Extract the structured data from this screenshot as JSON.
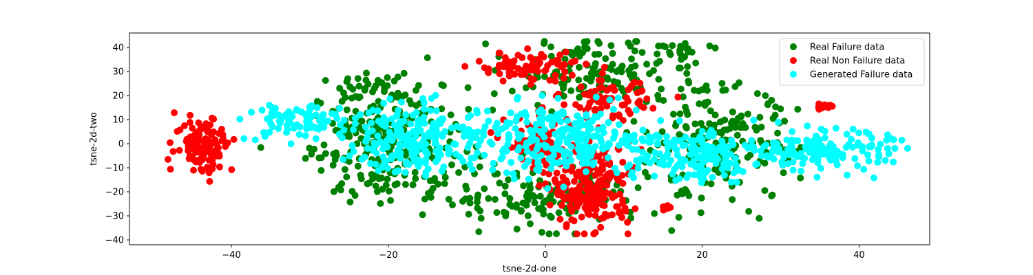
{
  "chart_data": {
    "type": "scatter",
    "title": "",
    "xlabel": "tsne-2d-one",
    "ylabel": "tsne-2d-two",
    "xlim": [
      -53,
      49
    ],
    "ylim": [
      -42,
      46
    ],
    "xticks": [
      -40,
      -20,
      0,
      20,
      40
    ],
    "yticks": [
      -40,
      -30,
      -20,
      -10,
      0,
      10,
      20,
      30,
      40
    ],
    "grid": false,
    "legend_position": "top-right",
    "series": [
      {
        "name": "Real Failure data",
        "color": "#008000",
        "clusters": [
          {
            "cx": -20,
            "cy": 0,
            "sx": 5,
            "sy": 12,
            "n": 260
          },
          {
            "cx": 6,
            "cy": 30,
            "sx": 5,
            "sy": 7,
            "n": 130
          },
          {
            "cx": 0,
            "cy": -22,
            "sx": 7,
            "sy": 6,
            "n": 150
          },
          {
            "cx": 22,
            "cy": 0,
            "sx": 5,
            "sy": 12,
            "n": 200
          },
          {
            "cx": 18,
            "cy": 39,
            "sx": 2,
            "sy": 1.2,
            "n": 20
          },
          {
            "cx": -22,
            "cy": 24,
            "sx": 2.5,
            "sy": 3,
            "n": 30
          }
        ]
      },
      {
        "name": "Real Non Failure data",
        "color": "#ff0000",
        "clusters": [
          {
            "cx": -43.5,
            "cy": 0,
            "sx": 1.8,
            "sy": 6,
            "n": 110
          },
          {
            "cx": 6,
            "cy": -18,
            "sx": 2.5,
            "sy": 9,
            "n": 220
          },
          {
            "cx": -2,
            "cy": 32,
            "sx": 3.5,
            "sy": 3,
            "n": 80
          },
          {
            "cx": 8,
            "cy": 18,
            "sx": 2.5,
            "sy": 4,
            "n": 70
          },
          {
            "cx": -1,
            "cy": 0,
            "sx": 2,
            "sy": 6,
            "n": 60
          },
          {
            "cx": 35.5,
            "cy": 15.5,
            "sx": 0.7,
            "sy": 0.6,
            "n": 20
          },
          {
            "cx": 15.5,
            "cy": -26.5,
            "sx": 0.4,
            "sy": 0.8,
            "n": 6
          },
          {
            "cx": -48,
            "cy": 0.3,
            "sx": 0.2,
            "sy": 0.2,
            "n": 1
          },
          {
            "cx": -10,
            "cy": 32,
            "sx": 0.2,
            "sy": 0.2,
            "n": 1
          }
        ]
      },
      {
        "name": "Generated Failure data",
        "color": "#00ffff",
        "clusters": [
          {
            "cx": -32,
            "cy": 9,
            "sx": 3,
            "sy": 4,
            "n": 80
          },
          {
            "cx": -16,
            "cy": 2,
            "sx": 5,
            "sy": 7,
            "n": 230
          },
          {
            "cx": 2,
            "cy": 2,
            "sx": 5,
            "sy": 7,
            "n": 230
          },
          {
            "cx": 18,
            "cy": -4,
            "sx": 5,
            "sy": 6,
            "n": 180
          },
          {
            "cx": 36,
            "cy": -3,
            "sx": 4,
            "sy": 4,
            "n": 150
          }
        ]
      }
    ]
  }
}
